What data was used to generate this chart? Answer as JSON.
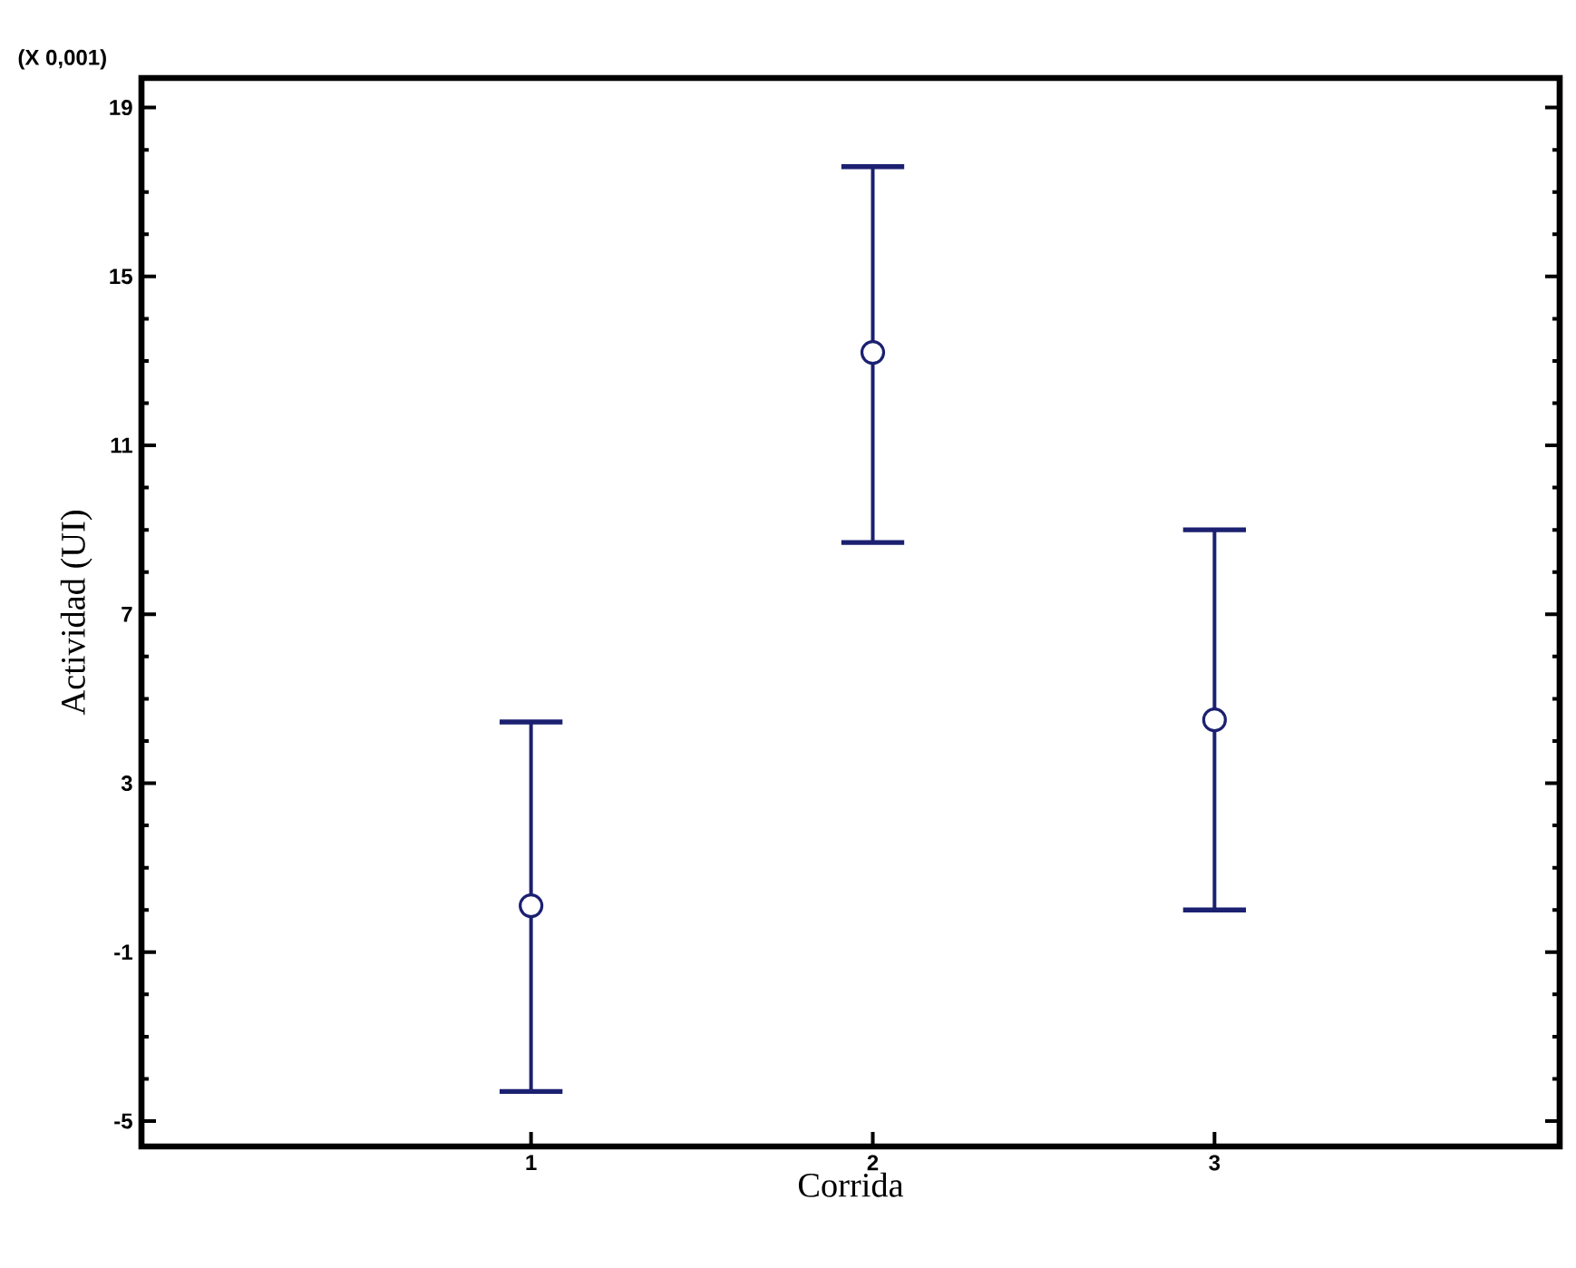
{
  "chart_data": {
    "type": "scatter",
    "xlabel": "Corrida",
    "ylabel": "Actividad (UI)",
    "annotations": [
      "(X 0,001)"
    ],
    "categories": [
      "1",
      "2",
      "3"
    ],
    "series": [
      {
        "color": "#1b2070",
        "values": [
          0.1,
          13.2,
          4.5
        ],
        "errors": [
          [
            -4.3,
            4.45
          ],
          [
            8.7,
            17.6
          ],
          [
            0.0,
            9.0
          ]
        ]
      }
    ],
    "ylim": [
      -5.6,
      19.7
    ],
    "yticks": [
      -5,
      -1,
      3,
      7,
      11,
      15,
      19
    ],
    "marker": "circle",
    "tick_labels": "y"
  }
}
